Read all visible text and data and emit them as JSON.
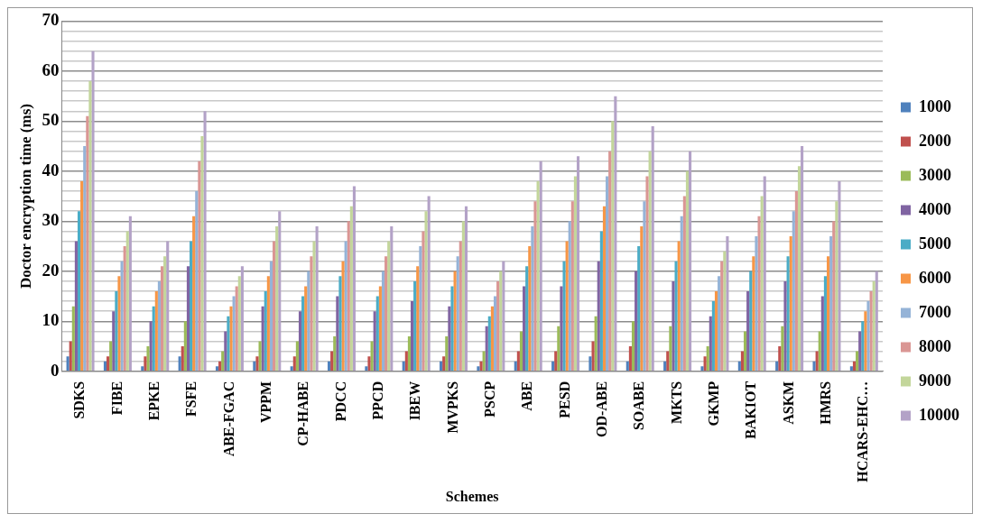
{
  "chart_data": {
    "type": "bar",
    "xlabel": "Schemes",
    "ylabel": "Doctor encryption time (ms)",
    "categories": [
      "SDKS",
      "FIBE",
      "EPKE",
      "FSFE",
      "ABE-FGAC",
      "VPPM",
      "CP-HABE",
      "PDCC",
      "PPCD",
      "IBEW",
      "MVPKS",
      "PSCP",
      "ABE",
      "PESD",
      "OD-ABE",
      "SOABE",
      "MKTS",
      "GKMP",
      "BAKIOT",
      "ASKM",
      "HMRS",
      "HCARS-EHC…"
    ],
    "series": [
      {
        "name": "1000",
        "color": "#4f81bd",
        "values": [
          3,
          2,
          1,
          3,
          1,
          2,
          1,
          2,
          1,
          2,
          2,
          1,
          2,
          2,
          3,
          2,
          2,
          1,
          2,
          2,
          2,
          1
        ]
      },
      {
        "name": "2000",
        "color": "#c0504d",
        "values": [
          6,
          3,
          3,
          5,
          2,
          3,
          3,
          4,
          3,
          4,
          3,
          2,
          4,
          4,
          6,
          5,
          4,
          3,
          4,
          5,
          4,
          2
        ]
      },
      {
        "name": "3000",
        "color": "#9bbb59",
        "values": [
          13,
          6,
          5,
          10,
          4,
          6,
          6,
          7,
          6,
          7,
          7,
          4,
          8,
          9,
          11,
          10,
          9,
          5,
          8,
          9,
          8,
          4
        ]
      },
      {
        "name": "4000",
        "color": "#8064a2",
        "values": [
          26,
          12,
          10,
          21,
          8,
          13,
          12,
          15,
          12,
          14,
          13,
          9,
          17,
          17,
          22,
          20,
          18,
          11,
          16,
          18,
          15,
          8
        ]
      },
      {
        "name": "5000",
        "color": "#4bacc6",
        "values": [
          32,
          16,
          13,
          26,
          11,
          16,
          15,
          19,
          15,
          18,
          17,
          11,
          21,
          22,
          28,
          25,
          22,
          14,
          20,
          23,
          19,
          10
        ]
      },
      {
        "name": "6000",
        "color": "#f79646",
        "values": [
          38,
          19,
          16,
          31,
          13,
          19,
          17,
          22,
          17,
          21,
          20,
          13,
          25,
          26,
          33,
          29,
          26,
          16,
          23,
          27,
          23,
          12
        ]
      },
      {
        "name": "7000",
        "color": "#95b3d7",
        "values": [
          45,
          22,
          18,
          36,
          15,
          22,
          20,
          26,
          20,
          25,
          23,
          15,
          29,
          30,
          39,
          34,
          31,
          19,
          27,
          32,
          27,
          14
        ]
      },
      {
        "name": "8000",
        "color": "#da9694",
        "values": [
          51,
          25,
          21,
          42,
          17,
          26,
          23,
          30,
          23,
          28,
          26,
          18,
          34,
          34,
          44,
          39,
          35,
          22,
          31,
          36,
          30,
          16
        ]
      },
      {
        "name": "9000",
        "color": "#c3d69b",
        "values": [
          58,
          28,
          23,
          47,
          19,
          29,
          26,
          33,
          26,
          32,
          30,
          20,
          38,
          39,
          50,
          44,
          40,
          24,
          35,
          41,
          34,
          18
        ]
      },
      {
        "name": "10000",
        "color": "#b3a2c7",
        "values": [
          64,
          31,
          26,
          52,
          21,
          32,
          29,
          37,
          29,
          35,
          33,
          22,
          42,
          43,
          55,
          49,
          44,
          27,
          39,
          45,
          38,
          20
        ]
      }
    ],
    "ylim": [
      0,
      70
    ],
    "yticks": [
      0,
      {
        "value": 2,
        "label": null
      },
      {
        "value": 4,
        "label": null
      },
      {
        "value": 6,
        "label": null
      },
      {
        "value": 8,
        "label": null
      },
      10,
      {
        "value": 12,
        "label": null
      },
      {
        "value": 14,
        "label": null
      },
      {
        "value": 16,
        "label": null
      },
      {
        "value": 18,
        "label": null
      },
      20,
      {
        "value": 22,
        "label": null
      },
      {
        "value": 24,
        "label": null
      },
      {
        "value": 26,
        "label": null
      },
      {
        "value": 28,
        "label": null
      },
      30,
      {
        "value": 32,
        "label": null
      },
      {
        "value": 34,
        "label": null
      },
      {
        "value": 36,
        "label": null
      },
      {
        "value": 38,
        "label": null
      },
      40,
      {
        "value": 42,
        "label": null
      },
      {
        "value": 44,
        "label": null
      },
      {
        "value": 46,
        "label": null
      },
      {
        "value": 48,
        "label": null
      },
      50,
      {
        "value": 52,
        "label": null
      },
      {
        "value": 54,
        "label": null
      },
      {
        "value": 56,
        "label": null
      },
      {
        "value": 58,
        "label": null
      },
      60,
      {
        "value": 62,
        "label": null
      },
      {
        "value": 64,
        "label": null
      },
      {
        "value": 66,
        "label": null
      },
      {
        "value": 68,
        "label": null
      },
      70
    ],
    "grid": "y",
    "legend": "right"
  }
}
